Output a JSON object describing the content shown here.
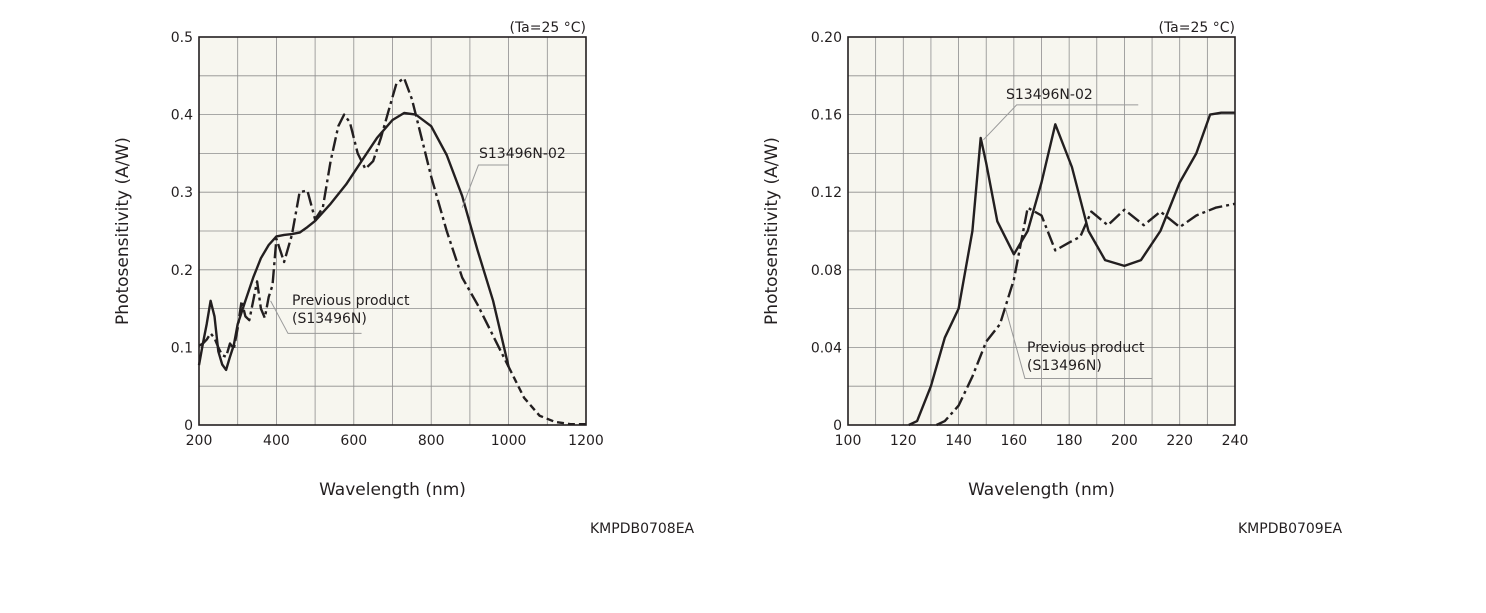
{
  "chart_data": [
    {
      "type": "line",
      "condition": "(Ta=25 °C)",
      "xlabel": "Wavelength (nm)",
      "ylabel": "Photosensitivity (A/W)",
      "xlim": [
        200,
        1200
      ],
      "ylim": [
        0,
        0.5
      ],
      "x_ticks": [
        "200",
        "400",
        "600",
        "800",
        "1000",
        "1200"
      ],
      "y_ticks": [
        "0",
        "0.1",
        "0.2",
        "0.3",
        "0.4",
        "0.5"
      ],
      "grid": true,
      "background": "#f7f6ef",
      "series": [
        {
          "name": "S13496N-02",
          "style": "solid",
          "points": [
            [
              200,
              0.077
            ],
            [
              210,
              0.105
            ],
            [
              220,
              0.13
            ],
            [
              230,
              0.16
            ],
            [
              240,
              0.14
            ],
            [
              250,
              0.095
            ],
            [
              260,
              0.078
            ],
            [
              270,
              0.071
            ],
            [
              280,
              0.088
            ],
            [
              290,
              0.103
            ],
            [
              300,
              0.13
            ],
            [
              320,
              0.16
            ],
            [
              340,
              0.19
            ],
            [
              360,
              0.215
            ],
            [
              380,
              0.232
            ],
            [
              400,
              0.243
            ],
            [
              420,
              0.245
            ],
            [
              440,
              0.246
            ],
            [
              460,
              0.248
            ],
            [
              480,
              0.255
            ],
            [
              500,
              0.263
            ],
            [
              540,
              0.285
            ],
            [
              580,
              0.31
            ],
            [
              620,
              0.34
            ],
            [
              660,
              0.37
            ],
            [
              700,
              0.393
            ],
            [
              730,
              0.402
            ],
            [
              760,
              0.4
            ],
            [
              800,
              0.385
            ],
            [
              840,
              0.348
            ],
            [
              880,
              0.295
            ],
            [
              920,
              0.225
            ],
            [
              960,
              0.16
            ],
            [
              1000,
              0.075
            ]
          ],
          "extension_dashed": [
            [
              1000,
              0.075
            ],
            [
              1040,
              0.035
            ],
            [
              1080,
              0.012
            ],
            [
              1120,
              0.004
            ],
            [
              1160,
              0.001
            ],
            [
              1200,
              0.001
            ]
          ]
        },
        {
          "name": "Previous product (S13496N)",
          "style": "dash-dot",
          "points": [
            [
              200,
              0.102
            ],
            [
              210,
              0.105
            ],
            [
              220,
              0.11
            ],
            [
              230,
              0.118
            ],
            [
              240,
              0.112
            ],
            [
              250,
              0.1
            ],
            [
              260,
              0.09
            ],
            [
              270,
              0.088
            ],
            [
              280,
              0.105
            ],
            [
              290,
              0.098
            ],
            [
              300,
              0.125
            ],
            [
              310,
              0.16
            ],
            [
              320,
              0.14
            ],
            [
              330,
              0.135
            ],
            [
              340,
              0.16
            ],
            [
              350,
              0.185
            ],
            [
              360,
              0.15
            ],
            [
              370,
              0.138
            ],
            [
              380,
              0.165
            ],
            [
              390,
              0.18
            ],
            [
              400,
              0.24
            ],
            [
              420,
              0.21
            ],
            [
              440,
              0.245
            ],
            [
              460,
              0.3
            ],
            [
              480,
              0.302
            ],
            [
              500,
              0.265
            ],
            [
              520,
              0.28
            ],
            [
              540,
              0.34
            ],
            [
              560,
              0.385
            ],
            [
              575,
              0.4
            ],
            [
              590,
              0.39
            ],
            [
              610,
              0.35
            ],
            [
              630,
              0.33
            ],
            [
              650,
              0.34
            ],
            [
              670,
              0.37
            ],
            [
              690,
              0.405
            ],
            [
              710,
              0.44
            ],
            [
              730,
              0.447
            ],
            [
              750,
              0.42
            ],
            [
              780,
              0.36
            ],
            [
              800,
              0.32
            ],
            [
              840,
              0.25
            ],
            [
              880,
              0.19
            ],
            [
              920,
              0.155
            ],
            [
              960,
              0.115
            ],
            [
              1000,
              0.075
            ]
          ]
        }
      ],
      "annotations": [
        {
          "text": "S13496N-02"
        },
        {
          "lines": [
            "Previous product",
            "(S13496N)"
          ]
        }
      ]
    },
    {
      "type": "line",
      "condition": "(Ta=25 °C)",
      "xlabel": "Wavelength (nm)",
      "ylabel": "Photosensitivity (A/W)",
      "xlim": [
        100,
        240
      ],
      "ylim": [
        0,
        0.2
      ],
      "x_ticks": [
        "100",
        "120",
        "140",
        "160",
        "180",
        "200",
        "220",
        "240"
      ],
      "y_ticks": [
        "0",
        "0.04",
        "0.08",
        "0.12",
        "0.16",
        "0.20"
      ],
      "grid": true,
      "background": "#f7f6ef",
      "series": [
        {
          "name": "S13496N-02",
          "style": "solid",
          "points": [
            [
              122,
              0
            ],
            [
              125,
              0.002
            ],
            [
              130,
              0.02
            ],
            [
              135,
              0.045
            ],
            [
              140,
              0.06
            ],
            [
              145,
              0.1
            ],
            [
              148,
              0.148
            ],
            [
              150,
              0.135
            ],
            [
              154,
              0.105
            ],
            [
              160,
              0.088
            ],
            [
              165,
              0.1
            ],
            [
              170,
              0.125
            ],
            [
              175,
              0.155
            ],
            [
              181,
              0.133
            ],
            [
              187,
              0.1
            ],
            [
              193,
              0.085
            ],
            [
              200,
              0.082
            ],
            [
              206,
              0.085
            ],
            [
              213,
              0.1
            ],
            [
              220,
              0.125
            ],
            [
              226,
              0.14
            ],
            [
              231,
              0.16
            ],
            [
              235,
              0.161
            ],
            [
              240,
              0.161
            ]
          ]
        },
        {
          "name": "Previous product (S13496N)",
          "style": "dash-dot",
          "points": [
            [
              132,
              0
            ],
            [
              135,
              0.002
            ],
            [
              140,
              0.01
            ],
            [
              145,
              0.025
            ],
            [
              150,
              0.043
            ],
            [
              155,
              0.052
            ],
            [
              160,
              0.075
            ],
            [
              165,
              0.112
            ],
            [
              170,
              0.108
            ],
            [
              175,
              0.09
            ],
            [
              180,
              0.094
            ],
            [
              184,
              0.097
            ],
            [
              188,
              0.11
            ],
            [
              194,
              0.103
            ],
            [
              200,
              0.111
            ],
            [
              207,
              0.103
            ],
            [
              213,
              0.11
            ],
            [
              220,
              0.102
            ],
            [
              226,
              0.108
            ],
            [
              233,
              0.112
            ],
            [
              240,
              0.114
            ]
          ]
        }
      ],
      "annotations": [
        {
          "text": "S13496N-02"
        },
        {
          "lines": [
            "Previous product",
            "(S13496N)"
          ]
        }
      ]
    }
  ],
  "codes": [
    "KMPDB0708EA",
    "KMPDB0709EA"
  ]
}
